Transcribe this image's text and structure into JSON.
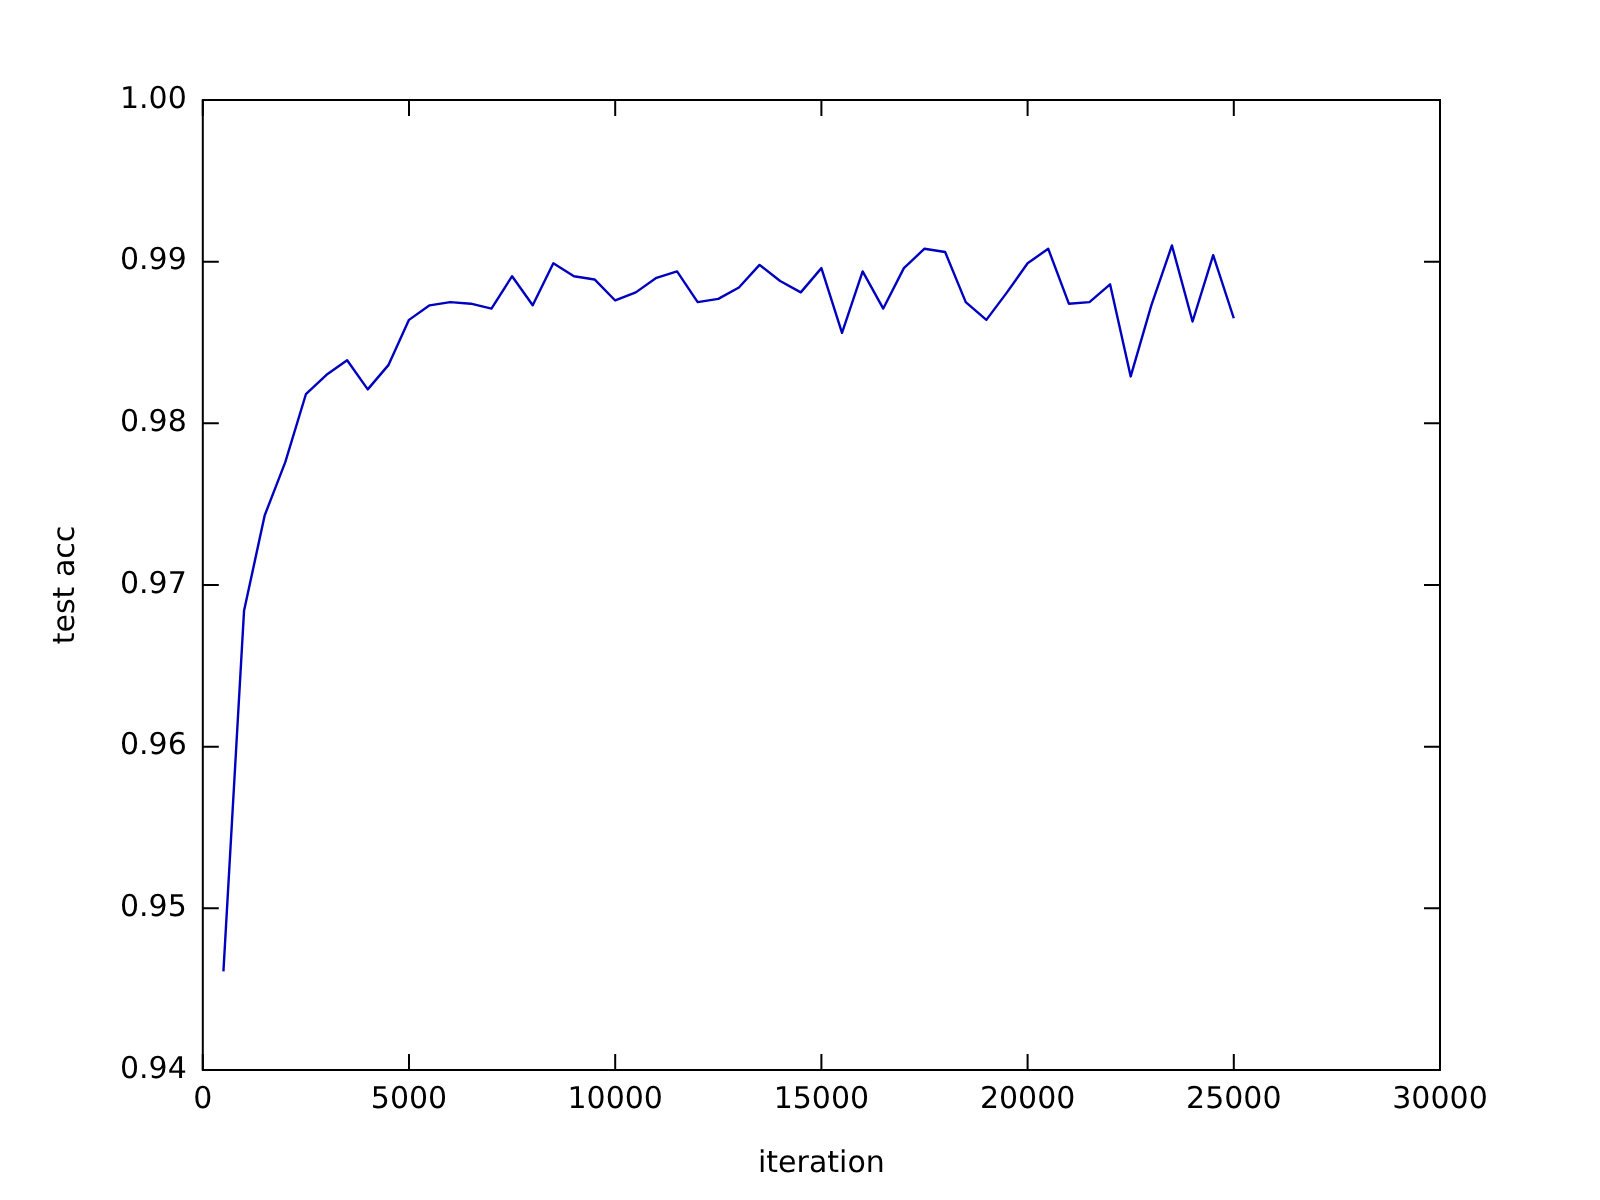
{
  "chart_data": {
    "type": "line",
    "xlabel": "iteration",
    "ylabel": "test acc",
    "x": [
      500,
      1000,
      1500,
      2000,
      2500,
      3000,
      3500,
      4000,
      4500,
      5000,
      5500,
      6000,
      6500,
      7000,
      7500,
      8000,
      8500,
      9000,
      9500,
      10000,
      10500,
      11000,
      11500,
      12000,
      12500,
      13000,
      13500,
      14000,
      14500,
      15000,
      15500,
      16000,
      16500,
      17000,
      17500,
      18000,
      18500,
      19000,
      19500,
      20000,
      20500,
      21000,
      21500,
      22000,
      22500,
      23000,
      23500,
      24000,
      24500,
      25000
    ],
    "series": [
      {
        "color": "#0000bf",
        "values": [
          0.9461,
          0.9684,
          0.9743,
          0.9776,
          0.9818,
          0.983,
          0.9839,
          0.9821,
          0.9836,
          0.9864,
          0.9873,
          0.9875,
          0.9874,
          0.9871,
          0.9891,
          0.9873,
          0.9899,
          0.9891,
          0.9889,
          0.9876,
          0.9881,
          0.989,
          0.9894,
          0.9875,
          0.9877,
          0.9884,
          0.9898,
          0.9888,
          0.9881,
          0.9896,
          0.9856,
          0.9894,
          0.9871,
          0.9896,
          0.9908,
          0.9906,
          0.9875,
          0.9864,
          0.9881,
          0.9899,
          0.9908,
          0.9874,
          0.9875,
          0.9886,
          0.9829,
          0.9873,
          0.991,
          0.9863,
          0.9904,
          0.9865
        ]
      }
    ],
    "xlim": [
      0,
      30000
    ],
    "xticks": [
      0,
      5000,
      10000,
      15000,
      20000,
      25000,
      30000
    ],
    "ylim": [
      0.94,
      1.0
    ],
    "yticks": [
      {
        "value": 0.94,
        "label": "0.94"
      },
      {
        "value": 0.95,
        "label": "0.95"
      },
      {
        "value": 0.96,
        "label": "0.96"
      },
      {
        "value": 0.97,
        "label": "0.97"
      },
      {
        "value": 0.98,
        "label": "0.98"
      },
      {
        "value": 0.99,
        "label": "0.99"
      },
      {
        "value": 1.0,
        "label": "1.00"
      }
    ],
    "grid": false,
    "legend": false,
    "marker": "none",
    "line_style": "solid"
  }
}
